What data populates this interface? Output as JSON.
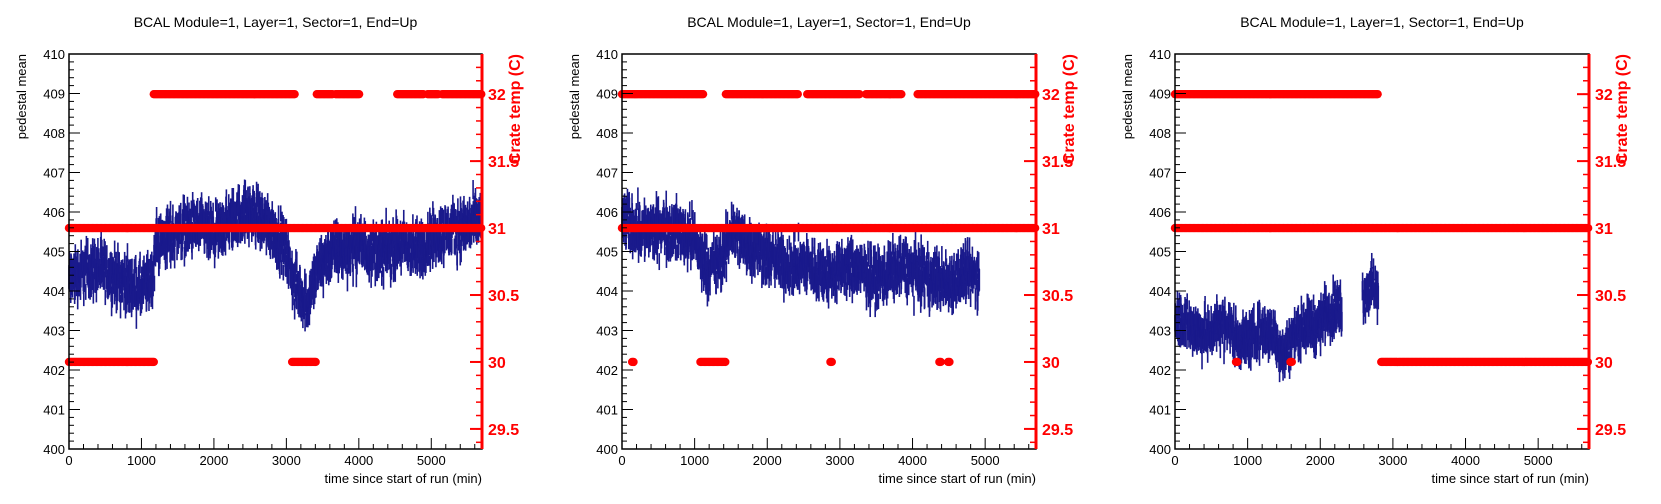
{
  "chart_data": [
    {
      "type": "scatter",
      "title": "BCAL Module=1, Layer=1, Sector=1, End=Up",
      "xlabel": "time since start of run (min)",
      "ylabel": "pedestal mean",
      "y2label": "Crate temp (C)",
      "xlim": [
        0,
        5700
      ],
      "ylim": [
        400,
        410
      ],
      "y2lim": [
        29.35,
        32.3
      ],
      "x_ticks": [
        0,
        1000,
        2000,
        3000,
        4000,
        5000
      ],
      "y_ticks": [
        400,
        401,
        402,
        403,
        404,
        405,
        406,
        407,
        408,
        409,
        410
      ],
      "y2_ticks": [
        29.5,
        30,
        30.5,
        31,
        31.5,
        32
      ],
      "colors": {
        "pedestal": "#1a1a8c",
        "temperature": "#ff0000"
      },
      "pedestal_series": {
        "x": [
          0,
          200,
          400,
          600,
          800,
          1000,
          1150,
          1200,
          1400,
          1600,
          1800,
          2000,
          2200,
          2400,
          2600,
          2800,
          3000,
          3100,
          3300,
          3400,
          3600,
          3800,
          4000,
          4200,
          4400,
          4600,
          4800,
          5000,
          5200,
          5400,
          5700
        ],
        "y": [
          404.3,
          404.5,
          404.6,
          404.4,
          404.2,
          404.0,
          404.3,
          405.2,
          405.4,
          405.6,
          405.6,
          405.4,
          405.7,
          406.0,
          405.9,
          405.6,
          405.0,
          404.2,
          403.7,
          404.4,
          405.0,
          405.0,
          405.2,
          405.0,
          405.0,
          405.2,
          405.0,
          405.3,
          405.5,
          405.6,
          405.8
        ],
        "spread": 0.9,
        "x_end": 5700
      },
      "temperature_series": [
        {
          "value": 31,
          "segments": [
            [
              0,
              5700
            ]
          ]
        },
        {
          "value": 30,
          "segments": [
            [
              0,
              1170
            ],
            [
              3080,
              3420
            ]
          ]
        },
        {
          "value": 32,
          "segments": [
            [
              1170,
              3130
            ],
            [
              3420,
              3650
            ],
            [
              3680,
              4020
            ],
            [
              4530,
              4900
            ],
            [
              4950,
              5100
            ],
            [
              5150,
              5700
            ]
          ]
        }
      ]
    },
    {
      "type": "scatter",
      "title": "BCAL Module=1, Layer=1, Sector=1, End=Up",
      "xlabel": "time since start of run (min)",
      "ylabel": "pedestal mean",
      "y2label": "Crate temp (C)",
      "xlim": [
        0,
        5700
      ],
      "ylim": [
        400,
        410
      ],
      "y2lim": [
        29.35,
        32.3
      ],
      "x_ticks": [
        0,
        1000,
        2000,
        3000,
        4000,
        5000
      ],
      "y_ticks": [
        400,
        401,
        402,
        403,
        404,
        405,
        406,
        407,
        408,
        409,
        410
      ],
      "y2_ticks": [
        29.5,
        30,
        30.5,
        31,
        31.5,
        32
      ],
      "colors": {
        "pedestal": "#1a1a8c",
        "temperature": "#ff0000"
      },
      "pedestal_series": {
        "x": [
          0,
          200,
          400,
          600,
          800,
          1000,
          1100,
          1200,
          1400,
          1500,
          1700,
          1900,
          2100,
          2300,
          2500,
          2700,
          2900,
          3100,
          3300,
          3500,
          3700,
          3900,
          4100,
          4300,
          4500,
          4700,
          4920
        ],
        "y": [
          405.8,
          405.6,
          405.5,
          405.6,
          405.5,
          405.3,
          404.8,
          404.6,
          404.8,
          405.6,
          405.2,
          405.0,
          404.8,
          404.6,
          404.7,
          404.5,
          404.4,
          404.6,
          404.5,
          404.3,
          404.5,
          404.6,
          404.4,
          404.3,
          404.2,
          404.4,
          404.4
        ],
        "spread": 0.9,
        "x_end": 4920
      },
      "temperature_series": [
        {
          "value": 31,
          "segments": [
            [
              0,
              5700
            ]
          ]
        },
        {
          "value": 30,
          "segments": [
            [
              140,
              160
            ],
            [
              1080,
              1430
            ],
            [
              2870,
              2890
            ],
            [
              4370,
              4390
            ],
            [
              4490,
              4510
            ]
          ]
        },
        {
          "value": 32,
          "segments": [
            [
              0,
              1130
            ],
            [
              1430,
              2430
            ],
            [
              2550,
              3280
            ],
            [
              3360,
              3860
            ],
            [
              4070,
              5700
            ]
          ]
        }
      ]
    },
    {
      "type": "scatter",
      "title": "BCAL Module=1, Layer=1, Sector=1, End=Up",
      "xlabel": "time since start of run (min)",
      "ylabel": "pedestal mean",
      "y2label": "Crate temp (C)",
      "xlim": [
        0,
        5700
      ],
      "ylim": [
        400,
        410
      ],
      "y2lim": [
        29.35,
        32.3
      ],
      "x_ticks": [
        0,
        1000,
        2000,
        3000,
        4000,
        5000
      ],
      "y_ticks": [
        400,
        401,
        402,
        403,
        404,
        405,
        406,
        407,
        408,
        409,
        410
      ],
      "y2_ticks": [
        29.5,
        30,
        30.5,
        31,
        31.5,
        32
      ],
      "colors": {
        "pedestal": "#1a1a8c",
        "temperature": "#ff0000"
      },
      "pedestal_series": {
        "x": [
          0,
          150,
          300,
          450,
          600,
          750,
          900,
          1050,
          1200,
          1350,
          1500,
          1650,
          1800,
          1950,
          2100,
          2300,
          2600,
          2700,
          2800
        ],
        "y": [
          403.4,
          403.2,
          403.0,
          402.9,
          403.2,
          403.1,
          402.7,
          402.8,
          403.0,
          402.9,
          402.4,
          402.9,
          403.2,
          403.1,
          403.5,
          403.6,
          403.9,
          404.1,
          404.0
        ],
        "spread": 0.8,
        "x_end": 2800,
        "gaps": [
          [
            2300,
            2580
          ]
        ]
      },
      "temperature_series": [
        {
          "value": 31,
          "segments": [
            [
              0,
              5700
            ]
          ]
        },
        {
          "value": 32,
          "segments": [
            [
              0,
              2800
            ]
          ]
        },
        {
          "value": 30,
          "segments": [
            [
              840,
              860
            ],
            [
              1590,
              1610
            ],
            [
              2840,
              5700
            ]
          ]
        }
      ]
    }
  ]
}
